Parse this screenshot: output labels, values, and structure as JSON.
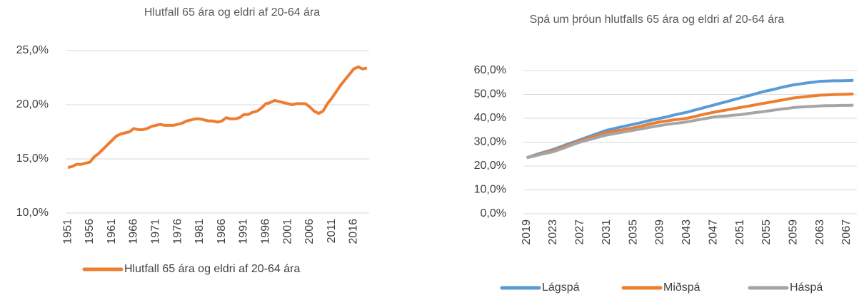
{
  "chart_data": [
    {
      "type": "line",
      "title": "Hlutfall 65 ára og eldri af 20-64 ára",
      "categories": [
        "1951",
        null,
        null,
        null,
        null,
        "1956",
        null,
        null,
        null,
        null,
        "1961",
        null,
        null,
        null,
        null,
        "1966",
        null,
        null,
        null,
        null,
        "1971",
        null,
        null,
        null,
        null,
        "1976",
        null,
        null,
        null,
        null,
        "1981",
        null,
        null,
        null,
        null,
        "1986",
        null,
        null,
        null,
        null,
        "1991",
        null,
        null,
        null,
        null,
        "1996",
        null,
        null,
        null,
        null,
        "2001",
        null,
        null,
        null,
        null,
        "2006",
        null,
        null,
        null,
        null,
        "2011",
        null,
        null,
        null,
        null,
        "2016",
        null,
        null,
        null
      ],
      "series": [
        {
          "name": "Hlutfall 65 ára og eldri af 20-64 ára",
          "color": "#ed7d31",
          "values": [
            14.2,
            14.3,
            14.5,
            14.5,
            14.6,
            14.7,
            15.2,
            15.5,
            15.9,
            16.3,
            16.7,
            17.1,
            17.3,
            17.4,
            17.5,
            17.8,
            17.7,
            17.7,
            17.8,
            18.0,
            18.1,
            18.2,
            18.1,
            18.1,
            18.1,
            18.2,
            18.3,
            18.5,
            18.6,
            18.7,
            18.7,
            18.6,
            18.5,
            18.5,
            18.4,
            18.5,
            18.8,
            18.7,
            18.7,
            18.8,
            19.1,
            19.1,
            19.3,
            19.4,
            19.7,
            20.1,
            20.2,
            20.4,
            20.3,
            20.2,
            20.1,
            20.0,
            20.1,
            20.1,
            20.1,
            19.8,
            19.4,
            19.2,
            19.4,
            20.1,
            20.6,
            21.2,
            21.8,
            22.3,
            22.8,
            23.3,
            23.5,
            23.3,
            23.4
          ]
        }
      ],
      "ylim": [
        10,
        25
      ],
      "yticks": [
        {
          "value": 10,
          "label": "10,0%"
        },
        {
          "value": 15,
          "label": "15,0%"
        },
        {
          "value": 20,
          "label": "20,0%"
        },
        {
          "value": 25,
          "label": "25,0%"
        }
      ],
      "grid": true,
      "legend": "bottom"
    },
    {
      "type": "line",
      "title": "Spá um þróun hlutfalls 65 ára og eldri af 20-64 ára",
      "categories": [
        "2019",
        null,
        null,
        null,
        "2023",
        null,
        null,
        null,
        "2027",
        null,
        null,
        null,
        "2031",
        null,
        null,
        null,
        "2035",
        null,
        null,
        null,
        "2039",
        null,
        null,
        null,
        "2043",
        null,
        null,
        null,
        "2047",
        null,
        null,
        null,
        "2051",
        null,
        null,
        null,
        "2055",
        null,
        null,
        null,
        "2059",
        null,
        null,
        null,
        "2063",
        null,
        null,
        null,
        "2067",
        null
      ],
      "series": [
        {
          "name": "Lágspá",
          "color": "#5b9bd5",
          "values": [
            23.5,
            24.4,
            25.3,
            26.1,
            27,
            28,
            29,
            30,
            31,
            32,
            33,
            34,
            35,
            35.6,
            36.3,
            36.9,
            37.5,
            38.1,
            38.8,
            39.4,
            40,
            40.6,
            41.3,
            41.9,
            42.5,
            43.3,
            44,
            44.8,
            45.5,
            46.3,
            47,
            47.8,
            48.5,
            49.3,
            50,
            50.8,
            51.5,
            52.1,
            52.8,
            53.4,
            54,
            54.4,
            54.8,
            55.1,
            55.5,
            55.6,
            55.7,
            55.7,
            55.8,
            55.9
          ]
        },
        {
          "name": "Miðspá",
          "color": "#ed7d31",
          "values": [
            23.5,
            24.3,
            25,
            25.8,
            26.5,
            27.5,
            28.5,
            29.5,
            30.5,
            31.4,
            32.3,
            33.1,
            34,
            34.5,
            35,
            35.5,
            36,
            36.6,
            37.3,
            37.9,
            38.5,
            38.9,
            39.3,
            39.6,
            40,
            40.6,
            41.3,
            41.9,
            42.5,
            43,
            43.5,
            44,
            44.5,
            45,
            45.5,
            46,
            46.5,
            47,
            47.5,
            48,
            48.5,
            48.8,
            49.1,
            49.4,
            49.7,
            49.8,
            49.9,
            50,
            50.1,
            50.2
          ]
        },
        {
          "name": "Háspá",
          "color": "#a5a5a5",
          "values": [
            23.5,
            24.1,
            24.8,
            25.4,
            26,
            27,
            28,
            29,
            30,
            30.8,
            31.5,
            32.3,
            33,
            33.5,
            34,
            34.5,
            35,
            35.5,
            36,
            36.5,
            37,
            37.4,
            37.8,
            38.1,
            38.5,
            39,
            39.5,
            40,
            40.5,
            40.8,
            41,
            41.3,
            41.5,
            41.9,
            42.3,
            42.6,
            43,
            43.4,
            43.8,
            44.1,
            44.5,
            44.7,
            44.9,
            45,
            45.2,
            45.3,
            45.3,
            45.4,
            45.4,
            45.5
          ]
        }
      ],
      "ylim": [
        0,
        60
      ],
      "yticks": [
        {
          "value": 0,
          "label": "0,0%"
        },
        {
          "value": 10,
          "label": "10,0%"
        },
        {
          "value": 20,
          "label": "20,0%"
        },
        {
          "value": 30,
          "label": "30,0%"
        },
        {
          "value": 40,
          "label": "40,0%"
        },
        {
          "value": 50,
          "label": "50,0%"
        },
        {
          "value": 60,
          "label": "60,0%"
        }
      ],
      "grid": true,
      "legend": "bottom"
    }
  ]
}
